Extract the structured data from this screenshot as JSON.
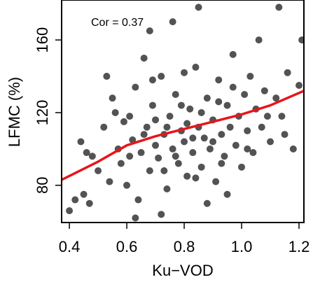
{
  "chart_data": {
    "type": "scatter",
    "x_label": "Ku−VOD",
    "y_label": "LFMC (%)",
    "annotation": "Cor = 0.37",
    "annotation_color": "#e8141c",
    "xlim": [
      0.373,
      1.217
    ],
    "ylim": [
      59.5,
      182
    ],
    "xticks": [
      0.4,
      0.6,
      0.8,
      {
        "value": 1.0,
        "label": "1.0"
      },
      1.2
    ],
    "yticks": [
      80,
      120,
      160
    ],
    "series": [
      {
        "type": "scatter",
        "color": "#1a1a1a",
        "x": [
          0.42,
          0.45,
          0.47,
          0.4,
          0.44,
          0.48,
          0.5,
          0.52,
          0.53,
          0.55,
          0.57,
          0.58,
          0.6,
          0.61,
          0.62,
          0.63,
          0.64,
          0.65,
          0.66,
          0.67,
          0.68,
          0.69,
          0.7,
          0.71,
          0.72,
          0.73,
          0.74,
          0.75,
          0.76,
          0.77,
          0.78,
          0.79,
          0.8,
          0.81,
          0.82,
          0.83,
          0.84,
          0.85,
          0.86,
          0.87,
          0.88,
          0.89,
          0.9,
          0.91,
          0.92,
          0.93,
          0.94,
          0.95,
          0.96,
          0.97,
          0.98,
          0.99,
          1.0,
          1.01,
          1.02,
          1.03,
          1.04,
          1.05,
          1.06,
          1.07,
          1.08,
          1.1,
          1.12,
          1.14,
          1.16,
          1.18,
          1.2,
          0.76,
          0.85,
          1.13,
          0.68,
          0.59,
          0.54,
          0.63,
          0.72,
          0.88,
          0.95,
          0.79,
          0.81,
          0.74,
          0.83,
          0.77,
          0.86,
          0.7,
          0.66,
          0.9,
          0.73,
          0.92,
          0.61,
          1.09,
          0.97,
          0.56,
          0.8,
          0.84,
          0.93,
          0.46,
          1.15,
          1.21,
          0.69,
          1.02
        ],
        "values": [
          72,
          75,
          70,
          66,
          104,
          96,
          88,
          112,
          140,
          128,
          100,
          92,
          80,
          118,
          105,
          134,
          72,
          98,
          150,
          112,
          88,
          124,
          102,
          95,
          140,
          108,
          78,
          118,
          100,
          130,
          92,
          110,
          104,
          85,
          122,
          98,
          145,
          112,
          90,
          106,
          128,
          100,
          116,
          82,
          138,
          108,
          96,
          124,
          112,
          152,
          102,
          118,
          90,
          130,
          110,
          140,
          98,
          122,
          160,
          112,
          132,
          104,
          128,
          118,
          142,
          100,
          135,
          170,
          178,
          178,
          165,
          115,
          82,
          62,
          64,
          70,
          75,
          124,
          114,
          112,
          106,
          96,
          120,
          116,
          108,
          104,
          88,
          126,
          96,
          118,
          134,
          120,
          142,
          84,
          92,
          98,
          108,
          160,
          138,
          100
        ]
      },
      {
        "type": "line",
        "color": "#e8141c",
        "x": [
          0.373,
          0.5,
          0.6,
          0.7,
          0.8,
          0.9,
          1.0,
          1.1,
          1.217
        ],
        "values": [
          83,
          93,
          102,
          107,
          111,
          115,
          119,
          124,
          132
        ]
      }
    ]
  }
}
